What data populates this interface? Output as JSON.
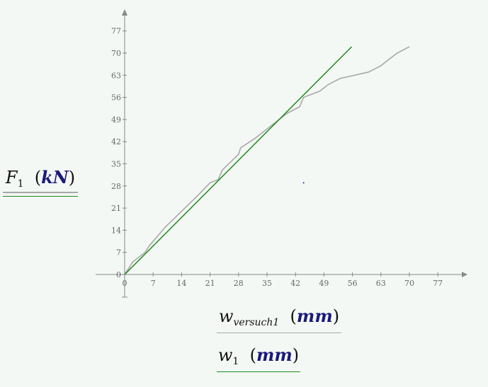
{
  "chart_data": {
    "type": "line",
    "x_ticks": [
      "0",
      "7",
      "14",
      "21",
      "28",
      "35",
      "42",
      "49",
      "56",
      "63",
      "70",
      "77"
    ],
    "y_ticks": [
      "0",
      "7",
      "14",
      "21",
      "28",
      "35",
      "42",
      "49",
      "56",
      "63",
      "70",
      "77"
    ],
    "xlim": [
      0,
      77
    ],
    "ylim": [
      0,
      77
    ],
    "grid": false,
    "y_axis_title": {
      "var": "F",
      "sub": "1",
      "unit": "kN"
    },
    "x_axis_titles": [
      {
        "var": "w",
        "sub": "versuch1",
        "unit": "mm"
      },
      {
        "var": "w",
        "sub": "1",
        "unit": "mm"
      }
    ],
    "series": [
      {
        "color": "#a8a8a8",
        "x": [
          0,
          2,
          5,
          6,
          10,
          14,
          18,
          21,
          23,
          24,
          28,
          28.5,
          32,
          36,
          40,
          43,
          44,
          48,
          50,
          53,
          60,
          63,
          65,
          67,
          70
        ],
        "y": [
          0,
          4,
          7,
          9,
          15,
          20,
          25,
          29,
          30,
          33,
          38,
          40,
          43,
          47,
          51,
          53,
          56,
          58,
          60,
          62,
          64,
          66,
          68,
          70,
          72
        ]
      },
      {
        "color": "#1e8a1e",
        "x": [
          0,
          55.8
        ],
        "y": [
          0,
          72
        ]
      }
    ],
    "annotations": [
      {
        "type": "point",
        "x": 44,
        "y": 29,
        "color": "#1a1aaa"
      }
    ]
  },
  "colors": {
    "axis": "#888888",
    "measured": "#a8a8a8",
    "linear": "#1e8a1e",
    "unit_text": "#1a1a7a"
  }
}
